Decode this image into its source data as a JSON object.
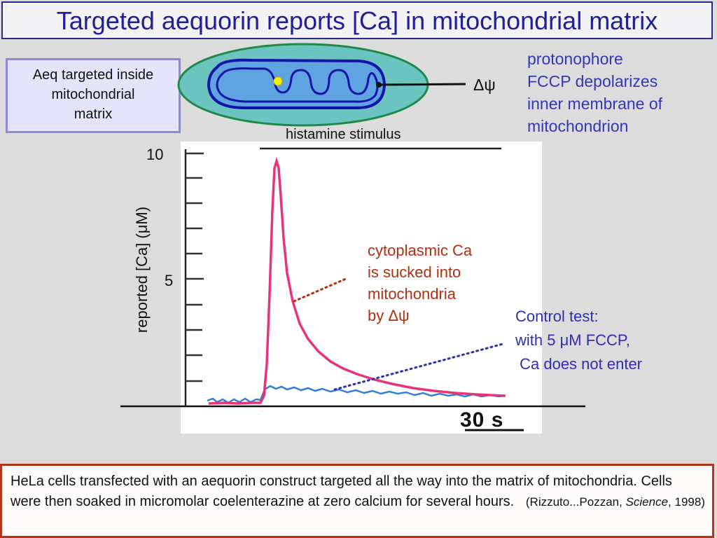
{
  "title": "Targeted aequorin reports [Ca] in mitochondrial matrix",
  "aeq_box": [
    "Aeq targeted inside",
    "mitochondrial",
    "matrix"
  ],
  "protonophore_note": [
    "protonophore",
    "FCCP depolarizes",
    "inner membrane of",
    "mitochondrion"
  ],
  "delta_psi_label": "Δψ",
  "histamine_label": "histamine stimulus",
  "y_axis": {
    "label": "reported [Ca] (μM)",
    "ticks": [
      "10",
      "5"
    ]
  },
  "cytoplasmic_note": [
    "cytoplasmic Ca",
    "is sucked into",
    "mitochondria",
    "by Δψ"
  ],
  "control_note": [
    "Control test:",
    "with 5 μM FCCP,",
    " Ca does not enter"
  ],
  "time_scale": "30 s",
  "caption": {
    "main": "HeLa cells transfected with an aequorin construct targeted all the way into the matrix of mitochondria.  Cells were then soaked in micromolar coelenterazine at zero calcium for several hours.",
    "cite_pre": "(Rizzuto...Pozzan, ",
    "cite_journal": "Science",
    "cite_post": ", 1998)"
  },
  "colors": {
    "title": "#1f1f9a",
    "experiment_trace": "#e8337a",
    "control_trace": "#2f7fd6",
    "cyto_annotation": "#b22f10",
    "control_annotation": "#2f2fb0",
    "cell_fill": "#6cc4c0",
    "mito_fill": "#5fa3e0"
  }
}
